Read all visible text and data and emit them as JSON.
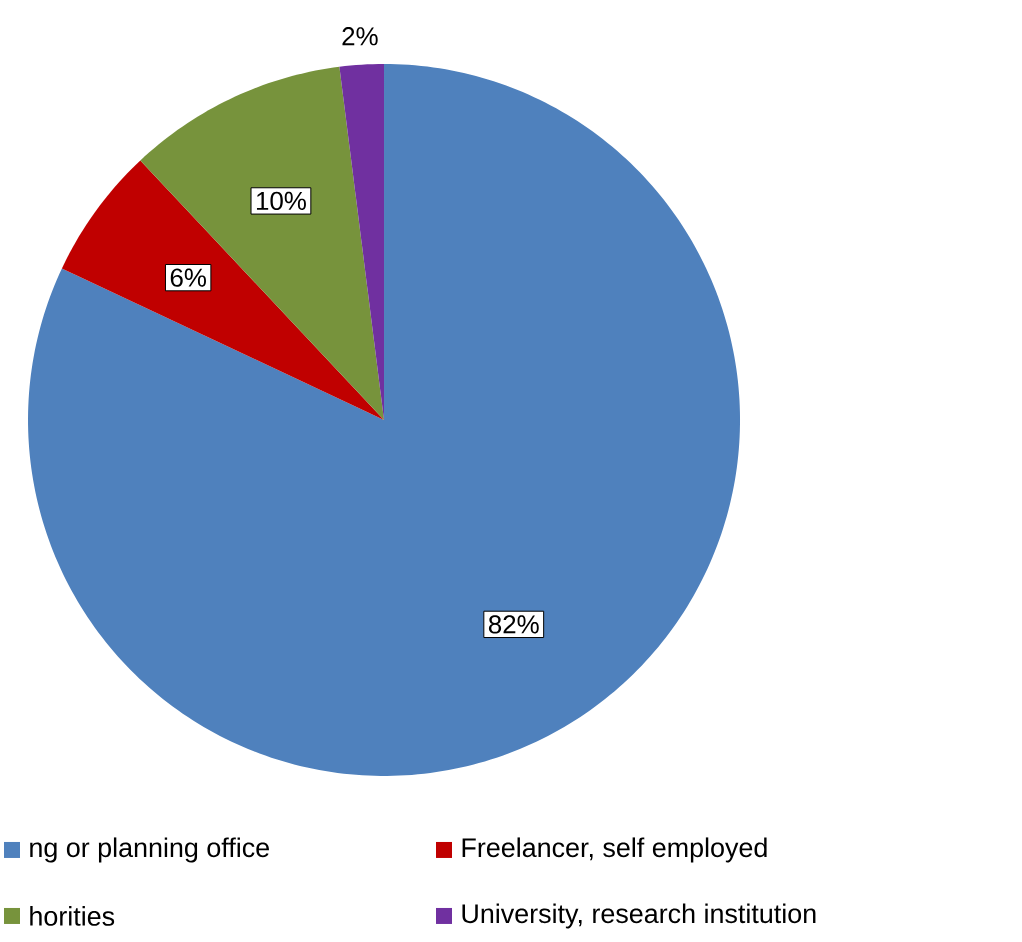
{
  "chart_data": {
    "type": "pie",
    "categories": [
      "ng or planning office",
      "Freelancer, self employed",
      "horities",
      "University, research institution"
    ],
    "values": [
      82,
      6,
      10,
      2
    ],
    "value_labels": [
      "82%",
      "6%",
      "10%",
      "2%"
    ],
    "colors": [
      "#4f81bd",
      "#c00000",
      "#77933c",
      "#7030a0"
    ],
    "legend": "bottom"
  }
}
